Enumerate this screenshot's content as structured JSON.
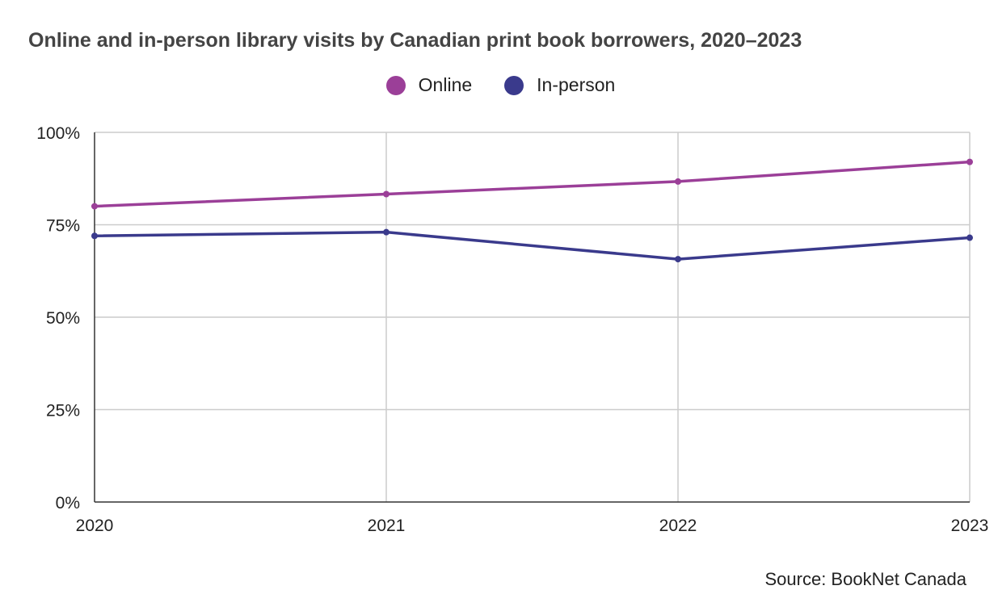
{
  "chart_data": {
    "type": "line",
    "title": "Online and in-person library visits by Canadian print book borrowers, 2020–2023",
    "categories": [
      "2020",
      "2021",
      "2022",
      "2023"
    ],
    "series": [
      {
        "name": "Online",
        "color": "#9b3f98",
        "values": [
          80,
          83.3,
          86.7,
          92
        ]
      },
      {
        "name": "In-person",
        "color": "#3a3a8c",
        "values": [
          72,
          73,
          65.7,
          71.5
        ]
      }
    ],
    "ylim": [
      0,
      100
    ],
    "yticks": [
      "0%",
      "25%",
      "50%",
      "75%",
      "100%"
    ],
    "ytick_values": [
      0,
      25,
      50,
      75,
      100
    ],
    "grid": true,
    "legend_position": "top-center",
    "xlabel": "",
    "ylabel": ""
  },
  "source": "Source: BookNet Canada"
}
